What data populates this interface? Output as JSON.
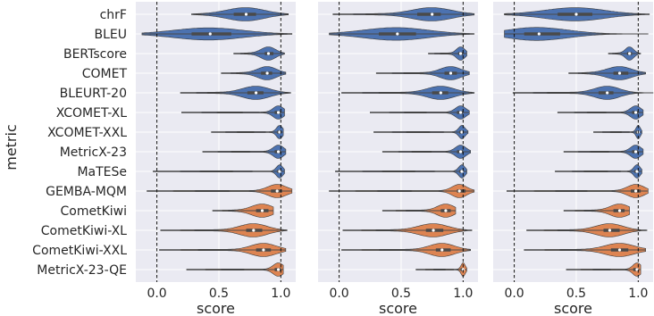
{
  "chart_data": {
    "type": "violin",
    "ylabel": "metric",
    "xlabel": "score",
    "x_ticks": [
      0.0,
      0.5,
      1.0
    ],
    "x_tick_labels": [
      "0.0",
      "0.5",
      "1.0"
    ],
    "xlim": [
      -0.17,
      1.12
    ],
    "reference_lines": [
      0.0,
      1.0
    ],
    "metrics": [
      "chrF",
      "BLEU",
      "BERTscore",
      "COMET",
      "BLEURT-20",
      "XCOMET-XL",
      "XCOMET-XXL",
      "MetricX-23",
      "MaTESe",
      "GEMBA-MQM",
      "CometKiwi",
      "CometKiwi-XL",
      "CometKiwi-XXL",
      "MetricX-23-QE"
    ],
    "metric_groups": [
      "reference-based",
      "reference-based",
      "reference-based",
      "reference-based",
      "reference-based",
      "reference-based",
      "reference-based",
      "reference-based",
      "reference-based",
      "reference-free",
      "reference-free",
      "reference-free",
      "reference-free",
      "reference-free"
    ],
    "colors": {
      "reference-based": "#4c72b0",
      "reference-free": "#dd8452",
      "background": "#eaeaf2",
      "grid": "#ffffff"
    },
    "panels": [
      {
        "min": [
          0.28,
          -0.12,
          0.62,
          0.52,
          0.19,
          0.2,
          0.44,
          0.37,
          -0.03,
          -0.08,
          0.45,
          0.03,
          0.02,
          0.24
        ],
        "median": [
          0.72,
          0.43,
          0.9,
          0.89,
          0.8,
          0.98,
          0.99,
          0.98,
          0.99,
          0.97,
          0.85,
          0.78,
          0.86,
          0.98
        ],
        "q1": [
          0.62,
          0.28,
          0.87,
          0.84,
          0.73,
          0.95,
          0.97,
          0.95,
          0.97,
          0.92,
          0.8,
          0.72,
          0.8,
          0.95
        ],
        "q3": [
          0.8,
          0.6,
          0.94,
          0.93,
          0.86,
          1.0,
          1.0,
          1.0,
          1.0,
          1.01,
          0.9,
          0.85,
          0.92,
          1.0
        ],
        "max": [
          1.06,
          1.09,
          1.03,
          1.04,
          1.08,
          1.03,
          1.02,
          1.04,
          1.03,
          1.09,
          0.94,
          1.05,
          1.04,
          1.02
        ]
      },
      {
        "min": [
          -0.05,
          -0.08,
          0.72,
          0.3,
          0.02,
          0.25,
          0.28,
          0.35,
          -0.03,
          -0.08,
          0.35,
          0.03,
          0.02,
          0.62
        ],
        "median": [
          0.75,
          0.47,
          0.98,
          0.9,
          0.82,
          0.98,
          0.99,
          0.98,
          0.99,
          0.97,
          0.86,
          0.76,
          0.83,
          1.0
        ],
        "q1": [
          0.63,
          0.32,
          0.96,
          0.85,
          0.75,
          0.95,
          0.97,
          0.95,
          0.97,
          0.95,
          0.82,
          0.7,
          0.78,
          0.98
        ],
        "q3": [
          0.82,
          0.62,
          1.0,
          0.95,
          0.88,
          1.0,
          1.0,
          1.0,
          1.0,
          1.02,
          0.9,
          0.84,
          0.9,
          1.0
        ],
        "max": [
          1.09,
          1.09,
          1.03,
          1.05,
          1.09,
          1.05,
          1.04,
          1.06,
          1.03,
          1.09,
          0.94,
          1.07,
          1.06,
          1.03
        ]
      },
      {
        "min": [
          -0.08,
          -0.08,
          0.76,
          0.44,
          -0.01,
          0.35,
          0.64,
          0.4,
          0.33,
          -0.06,
          0.4,
          0.1,
          0.08,
          0.42
        ],
        "median": [
          0.5,
          0.2,
          0.93,
          0.85,
          0.75,
          0.98,
          1.0,
          0.98,
          0.99,
          0.98,
          0.85,
          0.77,
          0.85,
          0.99
        ],
        "q1": [
          0.35,
          0.08,
          0.91,
          0.8,
          0.68,
          0.95,
          0.98,
          0.95,
          0.97,
          0.94,
          0.8,
          0.72,
          0.78,
          0.96
        ],
        "q3": [
          0.63,
          0.37,
          0.95,
          0.92,
          0.8,
          1.0,
          1.0,
          1.0,
          1.0,
          1.02,
          0.89,
          0.85,
          0.92,
          1.0
        ],
        "max": [
          1.09,
          1.08,
          1.02,
          1.06,
          1.12,
          1.04,
          1.03,
          1.04,
          1.03,
          1.08,
          0.93,
          1.07,
          1.06,
          1.02
        ]
      }
    ]
  }
}
